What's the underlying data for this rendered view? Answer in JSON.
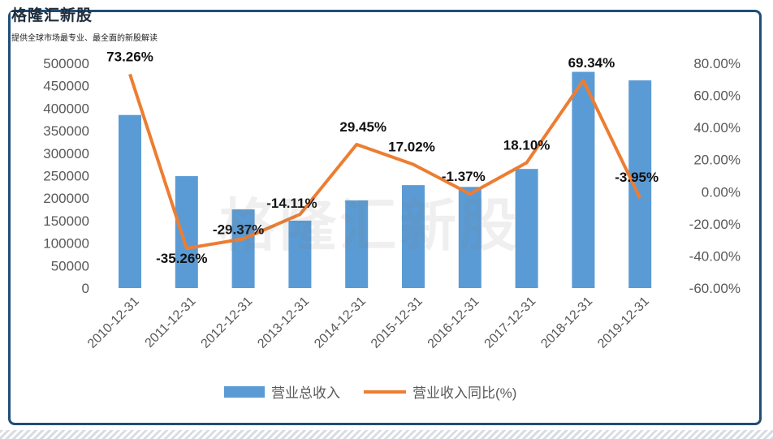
{
  "header": {
    "brand": "格隆汇新股",
    "subtitle": "提供全球市场最专业、最全面的新股解读",
    "watermark": "格隆汇新股"
  },
  "colors": {
    "bar": "#5b9bd5",
    "line": "#ed7d31",
    "frame": "#1f4e79",
    "axis_text": "#595959"
  },
  "chart_data": {
    "type": "bar",
    "categories": [
      "2010-12-31",
      "2011-12-31",
      "2012-12-31",
      "2013-12-31",
      "2014-12-31",
      "2015-12-31",
      "2016-12-31",
      "2017-12-31",
      "2018-12-31",
      "2019-12-31"
    ],
    "series": [
      {
        "name": "营业总收入",
        "type": "bar",
        "axis": "left",
        "values": [
          385000,
          249000,
          175000,
          150000,
          195000,
          229000,
          225000,
          265000,
          481000,
          462000
        ]
      },
      {
        "name": "营业收入同比(%)",
        "type": "line",
        "axis": "right",
        "values": [
          73.26,
          -35.26,
          -29.37,
          -14.11,
          29.45,
          17.02,
          -1.37,
          18.1,
          69.34,
          -3.95
        ],
        "labels": [
          "73.26%",
          "-35.26%",
          "-29.37%",
          "-14.11%",
          "29.45%",
          "17.02%",
          "-1.37%",
          "18.10%",
          "69.34%",
          "-3.95%"
        ]
      }
    ],
    "y_left": {
      "min": 0,
      "max": 500000,
      "step": 50000,
      "ticks": [
        "0",
        "50000",
        "100000",
        "150000",
        "200000",
        "250000",
        "300000",
        "350000",
        "400000",
        "450000",
        "500000"
      ]
    },
    "y_right": {
      "min": -60,
      "max": 80,
      "step": 20,
      "ticks": [
        "-60.00%",
        "-40.00%",
        "-20.00%",
        "0.00%",
        "20.00%",
        "40.00%",
        "60.00%",
        "80.00%"
      ]
    },
    "legend": {
      "position": "bottom",
      "items": [
        "营业总收入",
        "营业收入同比(%)"
      ]
    },
    "grid": false
  }
}
